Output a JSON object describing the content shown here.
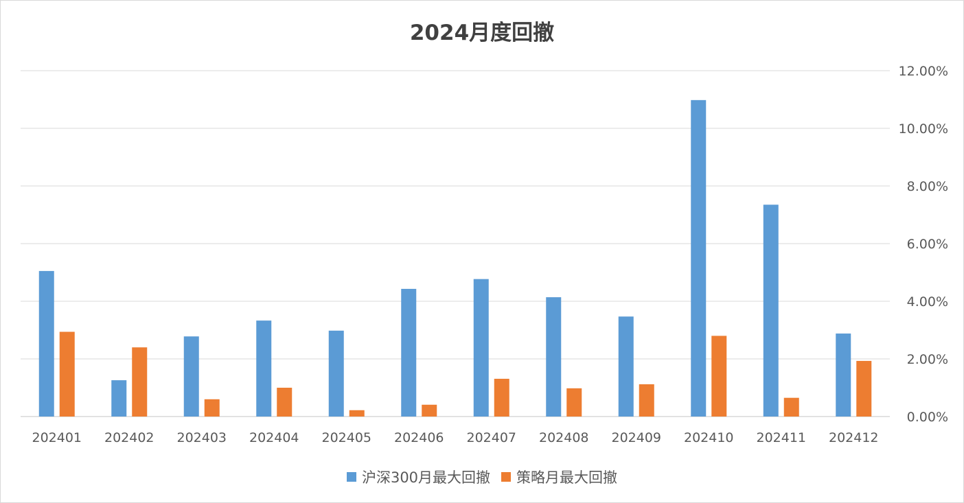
{
  "colors": {
    "series1": "#5b9bd5",
    "series2": "#ed7d31",
    "grid": "#d9d9d9",
    "axis_text": "#595959",
    "title_text": "#404040"
  },
  "chart_data": {
    "type": "bar",
    "title": "2024月度回撤",
    "xlabel": "",
    "ylabel": "",
    "y_axis_side": "right",
    "ylim": [
      0,
      0.12
    ],
    "y_ticks": [
      0,
      0.02,
      0.04,
      0.06,
      0.08,
      0.1,
      0.12
    ],
    "y_tick_labels": [
      "0.00%",
      "2.00%",
      "4.00%",
      "6.00%",
      "8.00%",
      "10.00%",
      "12.00%"
    ],
    "grid": true,
    "legend_position": "bottom",
    "categories": [
      "202401",
      "202402",
      "202403",
      "202404",
      "202405",
      "202406",
      "202407",
      "202408",
      "202409",
      "202410",
      "202411",
      "202412"
    ],
    "series": [
      {
        "name": "沪深300月最大回撤",
        "values": [
          0.0505,
          0.0126,
          0.0278,
          0.0333,
          0.0298,
          0.0443,
          0.0477,
          0.0414,
          0.0347,
          0.1098,
          0.0735,
          0.0288
        ]
      },
      {
        "name": "策略月最大回撤",
        "values": [
          0.0294,
          0.024,
          0.006,
          0.01,
          0.0022,
          0.0041,
          0.0131,
          0.0098,
          0.0112,
          0.028,
          0.0065,
          0.0193
        ]
      }
    ]
  }
}
